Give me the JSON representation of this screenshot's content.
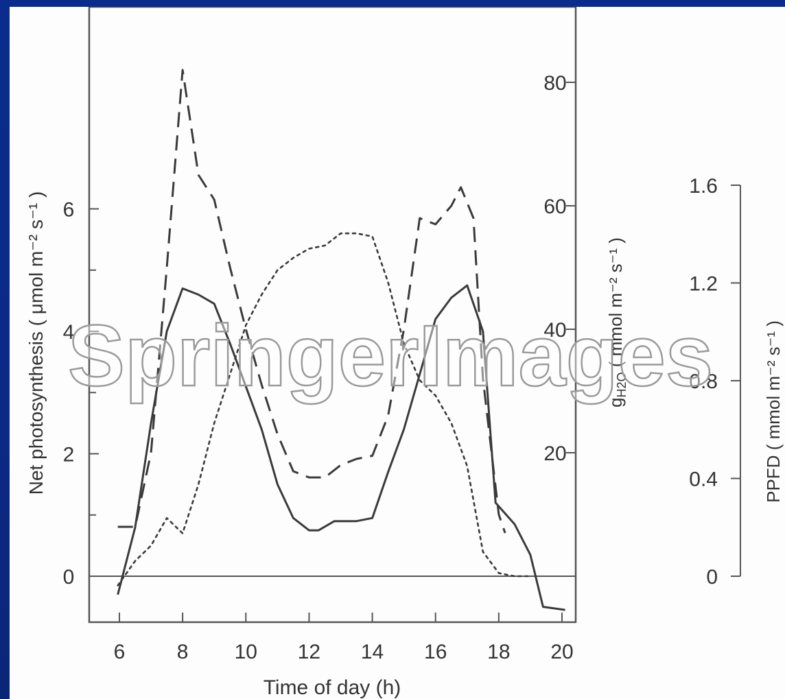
{
  "watermark": "SpringerImages",
  "chart_data": {
    "type": "line",
    "xlabel": "Time of day  (h)",
    "x_ticks": [
      6,
      8,
      10,
      12,
      14,
      16,
      18,
      20
    ],
    "xlim": [
      5,
      21
    ],
    "axes": {
      "left": {
        "label": "Net photosynthesis  ( μmol m⁻² s⁻¹ )",
        "ticks": [
          0,
          2,
          4,
          6
        ],
        "minor_ticks": [
          1,
          3,
          5
        ],
        "ylim": [
          -1,
          9.7
        ]
      },
      "right1": {
        "label_main": "g",
        "label_sub": "H2O",
        "label_rest": " ( mmol m⁻² s⁻¹ )",
        "ticks": [
          20,
          40,
          60,
          80
        ],
        "ylim": [
          -10,
          97
        ]
      },
      "right2": {
        "label": "PPFD  ( mmol m⁻² s⁻¹ )",
        "ticks": [
          "0",
          "0.4",
          "0.8",
          "1.2",
          "1.6"
        ],
        "tick_values": [
          0,
          0.4,
          0.8,
          1.2,
          1.6
        ],
        "ylim": [
          0,
          1.6
        ]
      }
    },
    "series": [
      {
        "style": "solid",
        "axis": "left",
        "points": [
          [
            5.95,
            -0.3
          ],
          [
            6.5,
            0.8
          ],
          [
            7,
            2.5
          ],
          [
            7.5,
            4
          ],
          [
            8,
            4.7
          ],
          [
            8.5,
            4.6
          ],
          [
            9,
            4.45
          ],
          [
            9.5,
            3.8
          ],
          [
            10,
            3.1
          ],
          [
            10.5,
            2.4
          ],
          [
            11,
            1.5
          ],
          [
            11.5,
            0.95
          ],
          [
            12,
            0.75
          ],
          [
            12.3,
            0.75
          ],
          [
            12.8,
            0.9
          ],
          [
            13.5,
            0.9
          ],
          [
            14,
            0.95
          ],
          [
            14.5,
            1.7
          ],
          [
            15,
            2.4
          ],
          [
            15.5,
            3.3
          ],
          [
            16,
            4.2
          ],
          [
            16.5,
            4.55
          ],
          [
            17,
            4.75
          ],
          [
            17.5,
            4
          ],
          [
            17.9,
            1.2
          ],
          [
            18.5,
            0.85
          ],
          [
            19,
            0.35
          ],
          [
            19.4,
            -0.5
          ],
          [
            20.1,
            -0.55
          ]
        ]
      },
      {
        "style": "dashed",
        "axis": "right1",
        "points": [
          [
            5.95,
            8
          ],
          [
            6.5,
            8
          ],
          [
            7,
            20
          ],
          [
            7.5,
            50
          ],
          [
            8,
            82
          ],
          [
            8.5,
            65
          ],
          [
            9,
            61
          ],
          [
            9.5,
            50
          ],
          [
            10,
            40
          ],
          [
            10.5,
            31
          ],
          [
            11,
            23
          ],
          [
            11.5,
            17
          ],
          [
            12,
            16
          ],
          [
            12.5,
            16
          ],
          [
            13,
            18
          ],
          [
            13.5,
            19
          ],
          [
            14,
            19.5
          ],
          [
            14.5,
            26
          ],
          [
            15,
            40
          ],
          [
            15.5,
            58
          ],
          [
            16,
            57
          ],
          [
            16.5,
            60
          ],
          [
            16.8,
            63
          ],
          [
            17.2,
            58
          ],
          [
            17.5,
            32
          ],
          [
            18,
            10
          ],
          [
            18.2,
            7
          ]
        ]
      },
      {
        "style": "dotted",
        "axis": "left",
        "points": [
          [
            5.95,
            -0.15
          ],
          [
            6.5,
            0.25
          ],
          [
            7,
            0.5
          ],
          [
            7.5,
            0.95
          ],
          [
            8,
            0.7
          ],
          [
            8.5,
            1.5
          ],
          [
            9,
            2.5
          ],
          [
            9.5,
            3.3
          ],
          [
            10,
            4.1
          ],
          [
            10.5,
            4.6
          ],
          [
            11,
            5
          ],
          [
            11.5,
            5.2
          ],
          [
            12,
            5.35
          ],
          [
            12.5,
            5.4
          ],
          [
            13,
            5.6
          ],
          [
            13.5,
            5.6
          ],
          [
            14,
            5.55
          ],
          [
            14.5,
            4.8
          ],
          [
            15,
            3.8
          ],
          [
            15.5,
            3.2
          ],
          [
            16,
            2.95
          ],
          [
            16.5,
            2.5
          ],
          [
            17,
            1.8
          ],
          [
            17.5,
            0.4
          ],
          [
            18,
            0.05
          ],
          [
            18.5,
            0
          ],
          [
            19,
            0
          ]
        ]
      }
    ]
  }
}
